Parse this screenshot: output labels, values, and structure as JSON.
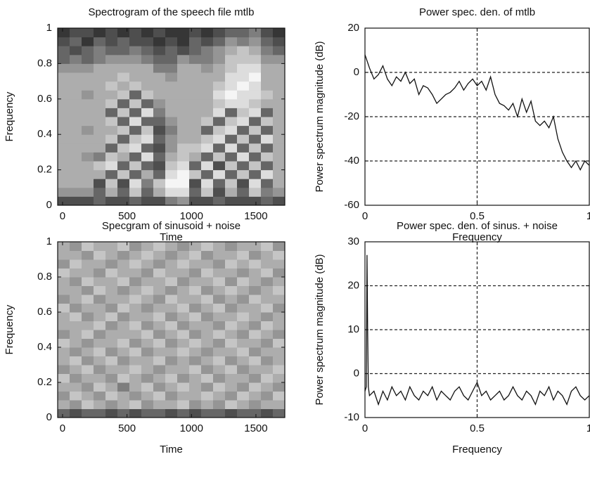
{
  "chart_data": [
    {
      "type": "heatmap",
      "title": "Spectrogram of the speech file mtlb",
      "xlabel": "Time",
      "ylabel": "Frequency",
      "xlim": [
        -38,
        1724
      ],
      "ylim": [
        0,
        1
      ],
      "xticks": [
        0,
        500,
        1000,
        1500
      ],
      "yticks": [
        0,
        0.2,
        0.4,
        0.6,
        0.8,
        1
      ],
      "colormap": "gray",
      "zlim": [
        0,
        9
      ],
      "z": [
        [
          2,
          2,
          2,
          3,
          2,
          2,
          3,
          2,
          2,
          4,
          5,
          2,
          2,
          3,
          2,
          2,
          2,
          3,
          2
        ],
        [
          5,
          5,
          5,
          3,
          6,
          3,
          7,
          3,
          6,
          8,
          8,
          3,
          7,
          2,
          6,
          3,
          7,
          4,
          5
        ],
        [
          6,
          6,
          6,
          2,
          7,
          2,
          8,
          4,
          7,
          9,
          9,
          2,
          8,
          3,
          7,
          2,
          8,
          3,
          6
        ],
        [
          6,
          6,
          6,
          6,
          3,
          7,
          3,
          6,
          3,
          8,
          9,
          7,
          3,
          8,
          3,
          7,
          3,
          8,
          6
        ],
        [
          6,
          6,
          6,
          7,
          8,
          3,
          7,
          3,
          2,
          7,
          8,
          3,
          8,
          2,
          7,
          3,
          7,
          3,
          6
        ],
        [
          6,
          6,
          5,
          4,
          7,
          6,
          3,
          8,
          3,
          6,
          7,
          6,
          3,
          7,
          3,
          8,
          3,
          7,
          6
        ],
        [
          6,
          6,
          6,
          6,
          3,
          7,
          8,
          3,
          2,
          5,
          7,
          7,
          8,
          3,
          8,
          3,
          7,
          3,
          6
        ],
        [
          6,
          6,
          6,
          6,
          7,
          3,
          7,
          8,
          3,
          5,
          6,
          6,
          7,
          8,
          3,
          7,
          3,
          8,
          6
        ],
        [
          6,
          6,
          5,
          6,
          6,
          7,
          3,
          7,
          2,
          4,
          6,
          6,
          3,
          7,
          8,
          3,
          7,
          3,
          6
        ],
        [
          6,
          6,
          6,
          6,
          7,
          3,
          8,
          3,
          3,
          5,
          6,
          6,
          7,
          3,
          7,
          8,
          3,
          7,
          6
        ],
        [
          6,
          6,
          6,
          6,
          3,
          7,
          3,
          8,
          4,
          6,
          6,
          6,
          6,
          8,
          3,
          7,
          8,
          3,
          6
        ],
        [
          6,
          6,
          6,
          6,
          7,
          3,
          7,
          3,
          5,
          6,
          6,
          6,
          6,
          7,
          8,
          8,
          7,
          6,
          6
        ],
        [
          6,
          6,
          5,
          6,
          6,
          7,
          3,
          7,
          6,
          6,
          6,
          6,
          6,
          8,
          9,
          8,
          8,
          7,
          6
        ],
        [
          6,
          6,
          6,
          6,
          7,
          6,
          7,
          6,
          6,
          6,
          6,
          6,
          6,
          7,
          8,
          9,
          8,
          6,
          6
        ],
        [
          6,
          6,
          6,
          6,
          6,
          7,
          6,
          6,
          6,
          5,
          6,
          6,
          6,
          6,
          8,
          8,
          9,
          6,
          6
        ],
        [
          5,
          5,
          5,
          6,
          6,
          6,
          6,
          6,
          4,
          4,
          6,
          6,
          5,
          6,
          7,
          8,
          8,
          6,
          6
        ],
        [
          3,
          4,
          3,
          4,
          5,
          5,
          5,
          4,
          3,
          3,
          5,
          4,
          4,
          5,
          7,
          7,
          7,
          5,
          5
        ],
        [
          3,
          2,
          3,
          4,
          3,
          3,
          4,
          3,
          2,
          3,
          2,
          3,
          4,
          5,
          6,
          7,
          6,
          4,
          3
        ],
        [
          2,
          3,
          1,
          3,
          2,
          3,
          2,
          2,
          1,
          2,
          1,
          3,
          2,
          3,
          5,
          4,
          5,
          3,
          2
        ],
        [
          1,
          2,
          2,
          1,
          2,
          1,
          2,
          1,
          2,
          1,
          1,
          2,
          1,
          2,
          3,
          3,
          4,
          2,
          1
        ]
      ]
    },
    {
      "type": "line",
      "title": "Power spec. den. of mtlb",
      "xlabel": "Frequency",
      "ylabel": "Power spectrum magnitude (dB)",
      "xlim": [
        0,
        1
      ],
      "ylim": [
        -60,
        20
      ],
      "xticks": [
        0,
        0.5,
        1
      ],
      "yticks": [
        -60,
        -40,
        -20,
        0,
        20
      ],
      "grid": true,
      "color": "#111111",
      "x": [
        0,
        0.02,
        0.04,
        0.06,
        0.08,
        0.1,
        0.12,
        0.14,
        0.16,
        0.18,
        0.2,
        0.22,
        0.24,
        0.26,
        0.28,
        0.3,
        0.32,
        0.34,
        0.36,
        0.38,
        0.4,
        0.42,
        0.44,
        0.46,
        0.48,
        0.5,
        0.52,
        0.54,
        0.56,
        0.58,
        0.6,
        0.62,
        0.64,
        0.66,
        0.68,
        0.7,
        0.72,
        0.74,
        0.76,
        0.78,
        0.8,
        0.82,
        0.84,
        0.86,
        0.88,
        0.9,
        0.92,
        0.94,
        0.96,
        0.98,
        1
      ],
      "values": [
        8,
        2,
        -3,
        -1,
        3,
        -3,
        -6,
        -2,
        -4,
        0,
        -5,
        -3,
        -10,
        -6,
        -7,
        -10,
        -14,
        -12,
        -10,
        -9,
        -7,
        -4,
        -8,
        -5,
        -3,
        -6,
        -4,
        -8,
        -2,
        -10,
        -14,
        -15,
        -17,
        -14,
        -20,
        -12,
        -18,
        -13,
        -22,
        -24,
        -22,
        -25,
        -20,
        -30,
        -36,
        -40,
        -43,
        -40,
        -44,
        -40,
        -42
      ]
    },
    {
      "type": "heatmap",
      "title": "Specgram of sinusoid + noise",
      "xlabel": "Time",
      "ylabel": "Frequency",
      "xlim": [
        -38,
        1724
      ],
      "ylim": [
        0,
        1
      ],
      "xticks": [
        0,
        500,
        1000,
        1500
      ],
      "yticks": [
        0,
        0.2,
        0.4,
        0.6,
        0.8,
        1
      ],
      "colormap": "gray",
      "zlim": [
        0,
        9
      ],
      "z": [
        [
          3,
          2,
          3,
          3,
          2,
          3,
          2,
          3,
          3,
          2,
          3,
          2,
          3,
          3,
          2,
          3,
          3,
          2,
          3
        ],
        [
          6,
          5,
          7,
          6,
          5,
          6,
          7,
          5,
          6,
          6,
          7,
          5,
          6,
          5,
          7,
          6,
          5,
          6,
          6
        ],
        [
          5,
          7,
          6,
          5,
          7,
          6,
          5,
          6,
          7,
          5,
          6,
          6,
          7,
          6,
          5,
          7,
          6,
          5,
          7
        ],
        [
          6,
          6,
          5,
          7,
          6,
          4,
          6,
          7,
          5,
          6,
          7,
          6,
          5,
          7,
          6,
          5,
          7,
          6,
          5
        ],
        [
          7,
          5,
          6,
          6,
          5,
          7,
          6,
          5,
          6,
          7,
          5,
          6,
          7,
          5,
          6,
          6,
          5,
          7,
          6
        ],
        [
          5,
          6,
          7,
          5,
          6,
          6,
          7,
          6,
          5,
          6,
          6,
          7,
          5,
          6,
          7,
          5,
          6,
          6,
          7
        ],
        [
          6,
          7,
          5,
          6,
          7,
          5,
          6,
          6,
          7,
          5,
          6,
          5,
          6,
          7,
          5,
          6,
          7,
          5,
          6
        ],
        [
          6,
          5,
          6,
          7,
          5,
          6,
          7,
          5,
          6,
          6,
          7,
          6,
          5,
          6,
          6,
          7,
          5,
          6,
          6
        ],
        [
          7,
          6,
          5,
          6,
          6,
          7,
          5,
          6,
          7,
          5,
          6,
          7,
          6,
          5,
          7,
          6,
          6,
          5,
          7
        ],
        [
          5,
          6,
          7,
          5,
          6,
          6,
          6,
          7,
          5,
          6,
          7,
          5,
          6,
          7,
          6,
          5,
          7,
          6,
          5
        ],
        [
          6,
          6,
          6,
          7,
          5,
          6,
          7,
          5,
          6,
          7,
          5,
          6,
          6,
          5,
          7,
          6,
          5,
          7,
          6
        ],
        [
          6,
          7,
          5,
          6,
          7,
          5,
          6,
          6,
          7,
          5,
          6,
          7,
          5,
          6,
          6,
          7,
          6,
          5,
          6
        ],
        [
          7,
          5,
          6,
          6,
          5,
          7,
          6,
          5,
          6,
          6,
          7,
          5,
          6,
          7,
          5,
          6,
          6,
          7,
          5
        ],
        [
          5,
          6,
          7,
          5,
          6,
          6,
          7,
          6,
          5,
          7,
          6,
          6,
          7,
          5,
          6,
          5,
          7,
          6,
          6
        ],
        [
          6,
          6,
          5,
          7,
          6,
          5,
          6,
          7,
          6,
          5,
          6,
          7,
          5,
          6,
          7,
          6,
          5,
          6,
          7
        ],
        [
          6,
          5,
          7,
          6,
          6,
          7,
          5,
          6,
          6,
          7,
          5,
          6,
          6,
          7,
          5,
          7,
          6,
          5,
          6
        ],
        [
          7,
          6,
          6,
          5,
          7,
          6,
          6,
          5,
          7,
          6,
          6,
          5,
          7,
          6,
          6,
          5,
          6,
          7,
          5
        ],
        [
          5,
          7,
          6,
          6,
          5,
          6,
          7,
          6,
          5,
          6,
          7,
          6,
          6,
          5,
          7,
          6,
          7,
          6,
          6
        ],
        [
          6,
          6,
          5,
          7,
          6,
          5,
          6,
          7,
          6,
          5,
          6,
          7,
          5,
          6,
          6,
          7,
          5,
          6,
          7
        ],
        [
          6,
          5,
          7,
          6,
          6,
          7,
          5,
          6,
          7,
          6,
          5,
          6,
          7,
          6,
          5,
          6,
          6,
          7,
          5
        ]
      ]
    },
    {
      "type": "line",
      "title": "Power spec. den. of sinus. + noise",
      "xlabel": "Frequency",
      "ylabel": "Power spectrum magnitude (dB)",
      "xlim": [
        0,
        1
      ],
      "ylim": [
        -10,
        30
      ],
      "xticks": [
        0,
        0.5,
        1
      ],
      "yticks": [
        -10,
        0,
        10,
        20,
        30
      ],
      "grid": true,
      "color": "#111111",
      "x": [
        0,
        0.006,
        0.009,
        0.012,
        0.015,
        0.02,
        0.04,
        0.06,
        0.08,
        0.1,
        0.12,
        0.14,
        0.16,
        0.18,
        0.2,
        0.22,
        0.24,
        0.26,
        0.28,
        0.3,
        0.32,
        0.34,
        0.36,
        0.38,
        0.4,
        0.42,
        0.44,
        0.46,
        0.48,
        0.5,
        0.52,
        0.54,
        0.56,
        0.58,
        0.6,
        0.62,
        0.64,
        0.66,
        0.68,
        0.7,
        0.72,
        0.74,
        0.76,
        0.78,
        0.8,
        0.82,
        0.84,
        0.86,
        0.88,
        0.9,
        0.92,
        0.94,
        0.96,
        0.98,
        1
      ],
      "values": [
        -4,
        -3,
        27,
        10,
        -3,
        -5,
        -4,
        -7,
        -4,
        -6,
        -3,
        -5,
        -4,
        -6,
        -3,
        -5,
        -6,
        -4,
        -5,
        -3,
        -6,
        -4,
        -5,
        -6,
        -4,
        -3,
        -5,
        -6,
        -4,
        -2,
        -5,
        -4,
        -6,
        -5,
        -4,
        -6,
        -5,
        -3,
        -5,
        -6,
        -4,
        -5,
        -7,
        -4,
        -5,
        -3,
        -6,
        -4,
        -5,
        -7,
        -4,
        -3,
        -5,
        -6,
        -5
      ]
    }
  ]
}
